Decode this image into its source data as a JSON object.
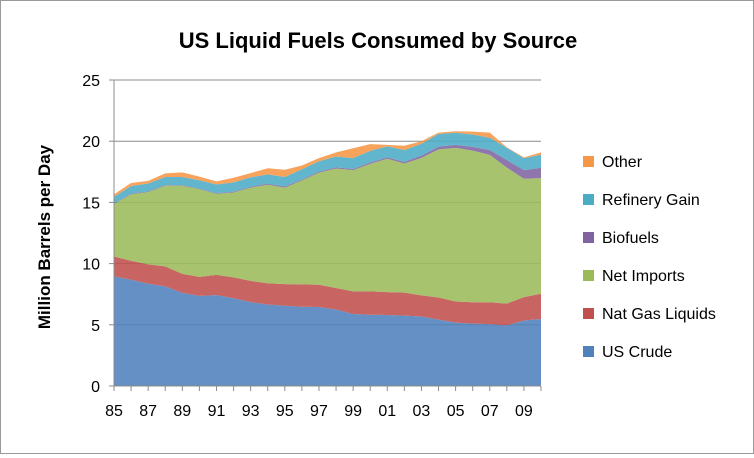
{
  "chart_data": {
    "type": "area",
    "stacked": true,
    "title": "US Liquid Fuels Consumed by Source",
    "xlabel": "",
    "ylabel": "Million Barrels per Day",
    "ylim": [
      0,
      25
    ],
    "yticks": [
      0,
      5,
      10,
      15,
      20,
      25
    ],
    "x": [
      1985,
      1986,
      1987,
      1988,
      1989,
      1990,
      1991,
      1992,
      1993,
      1994,
      1995,
      1996,
      1997,
      1998,
      1999,
      2000,
      2001,
      2002,
      2003,
      2004,
      2005,
      2006,
      2007,
      2008,
      2009,
      2010
    ],
    "xtick_labels": [
      "85",
      "87",
      "89",
      "91",
      "93",
      "95",
      "97",
      "99",
      "01",
      "03",
      "05",
      "07",
      "09"
    ],
    "legend_position": "right",
    "series": [
      {
        "name": "US Crude",
        "color": "#4f81bd",
        "values": [
          8.97,
          8.68,
          8.35,
          8.14,
          7.61,
          7.36,
          7.42,
          7.17,
          6.85,
          6.66,
          6.56,
          6.47,
          6.45,
          6.25,
          5.88,
          5.82,
          5.8,
          5.75,
          5.68,
          5.42,
          5.18,
          5.1,
          5.06,
          4.95,
          5.35,
          5.47
        ]
      },
      {
        "name": "Nat Gas Liquids",
        "color": "#c0504d",
        "values": [
          1.61,
          1.55,
          1.59,
          1.63,
          1.55,
          1.56,
          1.66,
          1.7,
          1.74,
          1.73,
          1.76,
          1.83,
          1.82,
          1.76,
          1.85,
          1.91,
          1.87,
          1.88,
          1.72,
          1.81,
          1.72,
          1.74,
          1.78,
          1.78,
          1.91,
          2.07
        ]
      },
      {
        "name": "Net Imports",
        "color": "#9bbb59",
        "values": [
          4.29,
          5.44,
          5.91,
          6.59,
          7.2,
          7.16,
          6.63,
          6.94,
          7.62,
          8.05,
          7.89,
          8.5,
          9.16,
          9.76,
          9.91,
          10.42,
          10.9,
          10.55,
          11.24,
          12.1,
          12.55,
          12.39,
          12.04,
          11.11,
          9.67,
          9.44
        ]
      },
      {
        "name": "Biofuels",
        "color": "#8064a2",
        "values": [
          0.04,
          0.05,
          0.05,
          0.05,
          0.05,
          0.05,
          0.05,
          0.06,
          0.07,
          0.08,
          0.09,
          0.07,
          0.08,
          0.09,
          0.09,
          0.11,
          0.11,
          0.13,
          0.18,
          0.22,
          0.25,
          0.31,
          0.4,
          0.62,
          0.71,
          0.85
        ]
      },
      {
        "name": "Refinery Gain",
        "color": "#4bacc6",
        "values": [
          0.55,
          0.62,
          0.64,
          0.66,
          0.66,
          0.68,
          0.7,
          0.77,
          0.77,
          0.77,
          0.77,
          0.84,
          0.85,
          0.89,
          0.89,
          0.95,
          0.9,
          0.96,
          0.97,
          1.05,
          0.99,
          1.01,
          1.0,
          1.0,
          0.98,
          1.06
        ]
      },
      {
        "name": "Other",
        "color": "#f79646",
        "values": [
          0.2,
          0.25,
          0.22,
          0.3,
          0.38,
          0.3,
          0.26,
          0.37,
          0.34,
          0.5,
          0.6,
          0.3,
          0.26,
          0.34,
          0.8,
          0.55,
          0.12,
          0.36,
          0.21,
          0.1,
          0.12,
          0.23,
          0.42,
          0.04,
          0.06,
          0.2
        ]
      }
    ]
  }
}
